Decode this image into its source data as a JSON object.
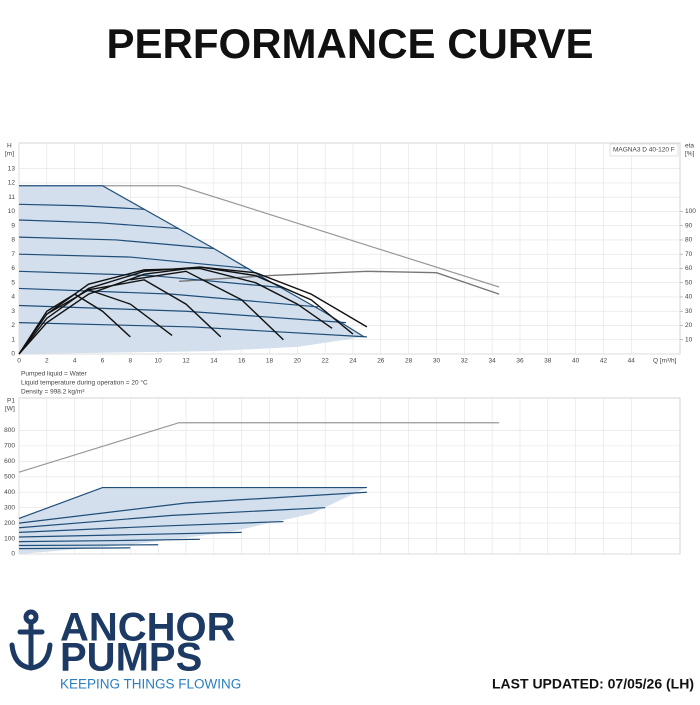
{
  "header": {
    "title": "PERFORMANCE CURVE"
  },
  "footer": {
    "brand_line1": "ANCHOR",
    "brand_line2": "PUMPS",
    "tagline": "KEEPING THINGS FLOWING",
    "last_updated": "LAST UPDATED: 07/05/26 (LH)"
  },
  "chart_data": [
    {
      "type": "line",
      "y_label": "H",
      "y_unit": "[m]",
      "y2_label": "eta",
      "y2_unit": "[%]",
      "x_label": "Q [m³/h]",
      "annotation": "MAGNA3 D 40-120 F",
      "notes": [
        "Pumped liquid = Water",
        "Liquid temperature during operation = 20 °C",
        "Density = 998.2 kg/m³"
      ],
      "xlim": [
        0,
        47.5
      ],
      "xticks": [
        0,
        2,
        4,
        6,
        8,
        10,
        12,
        14,
        16,
        18,
        20,
        22,
        24,
        26,
        28,
        30,
        32,
        34,
        36,
        38,
        40,
        42,
        44
      ],
      "ylim": [
        0,
        14.8
      ],
      "yticks": [
        0,
        1,
        2,
        3,
        4,
        5,
        6,
        7,
        8,
        9,
        10,
        11,
        12,
        13
      ],
      "y2lim": [
        0,
        148
      ],
      "y2ticks": [
        10,
        20,
        30,
        40,
        50,
        60,
        70,
        80,
        90,
        100
      ],
      "grid": true,
      "series": [
        {
          "color": "#d3dfec",
          "fill": true,
          "x": [
            0,
            6,
            10,
            14,
            18,
            22,
            24.8,
            20,
            14,
            0
          ],
          "values": [
            11.8,
            11.8,
            9.6,
            7.4,
            5.1,
            2.9,
            1.2,
            0.5,
            0.2,
            0
          ]
        },
        {
          "color": "#999999",
          "x": [
            6,
            11.5,
            34.5
          ],
          "values": [
            11.8,
            11.8,
            4.7
          ]
        },
        {
          "color": "#777777",
          "axis": "y2",
          "x": [
            11.5,
            18,
            25,
            30,
            34.5
          ],
          "values": [
            51,
            55,
            58,
            57,
            42
          ]
        },
        {
          "color": "#1f4e79",
          "x": [
            0,
            6,
            10,
            14,
            18,
            22,
            24.8
          ],
          "values": [
            11.8,
            11.8,
            9.6,
            7.4,
            5.1,
            2.9,
            1.2
          ]
        },
        {
          "color": "#1f4e79",
          "x": [
            0,
            4.5,
            9
          ],
          "values": [
            10.5,
            10.4,
            10.15
          ]
        },
        {
          "color": "#1f4e79",
          "x": [
            0,
            5.8,
            11.5
          ],
          "values": [
            9.4,
            9.2,
            8.8
          ]
        },
        {
          "color": "#1f4e79",
          "x": [
            0,
            7,
            14
          ],
          "values": [
            8.2,
            8.0,
            7.4
          ]
        },
        {
          "color": "#1f4e79",
          "x": [
            0,
            8,
            16.5
          ],
          "values": [
            7.0,
            6.8,
            6.0
          ]
        },
        {
          "color": "#1f4e79",
          "x": [
            0,
            9.5,
            19
          ],
          "values": [
            5.8,
            5.5,
            4.65
          ]
        },
        {
          "color": "#1f4e79",
          "x": [
            0,
            11,
            21.5
          ],
          "values": [
            4.6,
            4.2,
            3.3
          ]
        },
        {
          "color": "#1f4e79",
          "x": [
            0,
            12,
            23.5
          ],
          "values": [
            3.4,
            3.0,
            2.2
          ]
        },
        {
          "color": "#1f4e79",
          "x": [
            0,
            12.5,
            25
          ],
          "values": [
            2.2,
            1.9,
            1.2
          ]
        },
        {
          "color": "#111111",
          "axis": "y2",
          "x": [
            0,
            2,
            5,
            9,
            13,
            17,
            21,
            25
          ],
          "values": [
            0,
            22,
            42,
            56,
            61,
            57,
            42,
            19
          ]
        },
        {
          "color": "#111111",
          "axis": "y2",
          "x": [
            0,
            2,
            5,
            9,
            13,
            17,
            21,
            24
          ],
          "values": [
            0,
            25,
            46,
            58,
            61,
            55,
            38,
            14
          ]
        },
        {
          "color": "#111111",
          "axis": "y2",
          "x": [
            0,
            2,
            5,
            9,
            13,
            17,
            20,
            22.5
          ],
          "values": [
            0,
            28,
            49,
            59,
            60,
            50,
            35,
            18
          ]
        },
        {
          "color": "#111111",
          "axis": "y2",
          "x": [
            0,
            2,
            4,
            6,
            8
          ],
          "values": [
            0,
            30,
            42,
            30,
            12
          ]
        },
        {
          "color": "#111111",
          "axis": "y2",
          "x": [
            2,
            5,
            8,
            11
          ],
          "values": [
            28,
            45,
            35,
            13
          ]
        },
        {
          "color": "#111111",
          "axis": "y2",
          "x": [
            5,
            9,
            12,
            14.5
          ],
          "values": [
            45,
            52,
            35,
            12
          ]
        },
        {
          "color": "#111111",
          "axis": "y2",
          "x": [
            8,
            12,
            16,
            19
          ],
          "values": [
            52,
            58,
            38,
            10
          ]
        }
      ]
    },
    {
      "type": "line",
      "y_label": "P1",
      "y_unit": "[W]",
      "xlim": [
        0,
        47.5
      ],
      "ylim": [
        0,
        1010
      ],
      "yticks": [
        0,
        100,
        200,
        300,
        400,
        500,
        600,
        700,
        800
      ],
      "grid": true,
      "series": [
        {
          "color": "#d3dfec",
          "fill": true,
          "x": [
            0,
            6,
            25,
            21,
            15,
            8,
            0
          ],
          "values": [
            230,
            430,
            430,
            260,
            140,
            60,
            0
          ]
        },
        {
          "color": "#999999",
          "x": [
            0,
            11.5,
            34.5
          ],
          "values": [
            530,
            850,
            850
          ]
        },
        {
          "color": "#1f4e79",
          "x": [
            0,
            6,
            25
          ],
          "values": [
            230,
            430,
            430
          ]
        },
        {
          "color": "#1f4e79",
          "x": [
            0,
            12,
            25
          ],
          "values": [
            200,
            330,
            400
          ]
        },
        {
          "color": "#1f4e79",
          "x": [
            0,
            11,
            22
          ],
          "values": [
            170,
            250,
            300
          ]
        },
        {
          "color": "#1f4e79",
          "x": [
            0,
            10,
            19
          ],
          "values": [
            140,
            180,
            210
          ]
        },
        {
          "color": "#1f4e79",
          "x": [
            0,
            8,
            16
          ],
          "values": [
            110,
            125,
            140
          ]
        },
        {
          "color": "#1f4e79",
          "x": [
            0,
            7,
            13
          ],
          "values": [
            80,
            87,
            95
          ]
        },
        {
          "color": "#1f4e79",
          "x": [
            0,
            5,
            10
          ],
          "values": [
            55,
            57,
            60
          ]
        },
        {
          "color": "#1f4e79",
          "x": [
            0,
            4,
            8
          ],
          "values": [
            35,
            37,
            40
          ]
        }
      ]
    }
  ]
}
